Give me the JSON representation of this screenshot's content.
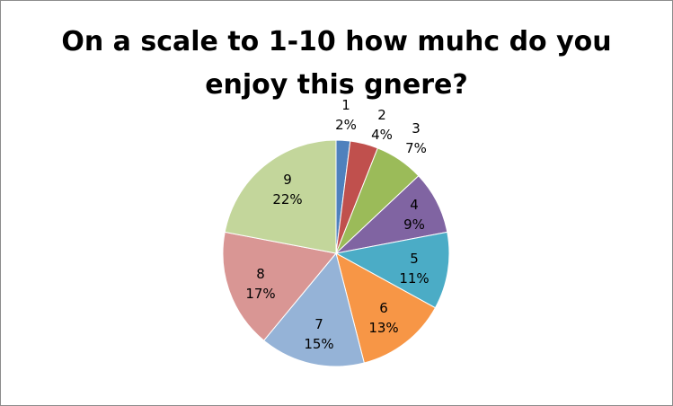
{
  "chart_data": {
    "type": "pie",
    "title_line1": "On a scale to 1-10 how muhc do you",
    "title_line2": "enjoy this gnere?",
    "categories": [
      "1",
      "2",
      "3",
      "4",
      "5",
      "6",
      "7",
      "8",
      "9"
    ],
    "values": [
      2,
      4,
      7,
      9,
      11,
      13,
      15,
      17,
      22
    ],
    "value_labels": [
      "2%",
      "4%",
      "7%",
      "9%",
      "11%",
      "13%",
      "15%",
      "17%",
      "22%"
    ],
    "colors": [
      "#4f81bd",
      "#c0504d",
      "#9bbb59",
      "#8064a2",
      "#4bacc6",
      "#f79646",
      "#95b3d7",
      "#d99694",
      "#c3d69b"
    ],
    "legend": "none"
  }
}
